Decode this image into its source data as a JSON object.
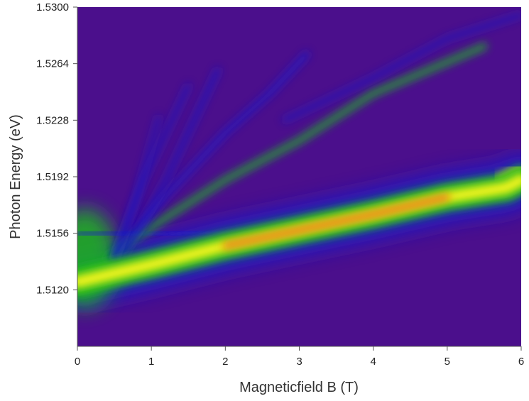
{
  "chart_data": {
    "type": "heatmap",
    "title": "",
    "xlabel": "Magneticfield B (T)",
    "ylabel": "Photon Energy (eV)",
    "xlim": [
      0,
      6
    ],
    "ylim": [
      1.5084,
      1.53
    ],
    "x_ticks": [
      "0",
      "1",
      "2",
      "3",
      "4",
      "5",
      "6"
    ],
    "y_ticks": [
      "1.5120",
      "1.5156",
      "1.5192",
      "1.5228",
      "1.5264",
      "1.5300"
    ],
    "colormap": "purple-blue-green-yellow-red (low to high intensity)",
    "colors": {
      "background": "#4b0f8c",
      "low": "#1a1acc",
      "mid": "#1fb81a",
      "high": "#f5f51a",
      "peak": "#e85a12"
    },
    "grid": false,
    "legend": "none",
    "features": [
      {
        "name": "main branch",
        "points": [
          [
            0,
            1.5125
          ],
          [
            1,
            1.5136
          ],
          [
            2,
            1.5148
          ],
          [
            3,
            1.5158
          ],
          [
            4,
            1.5168
          ],
          [
            5,
            1.5179
          ],
          [
            5.8,
            1.5185
          ],
          [
            6,
            1.519
          ]
        ],
        "level": 1.0
      },
      {
        "name": "upper split branch",
        "points": [
          [
            5.7,
            1.519
          ],
          [
            6,
            1.5197
          ]
        ],
        "level": 0.9
      },
      {
        "name": "weak line",
        "points": [
          [
            0,
            1.5155
          ],
          [
            0.6,
            1.5155
          ],
          [
            2.3,
            1.5157
          ]
        ],
        "level": 0.45
      },
      {
        "name": "band 1",
        "points": [
          [
            0.4,
            1.514
          ],
          [
            1,
            1.516
          ],
          [
            2,
            1.519
          ],
          [
            3,
            1.5215
          ],
          [
            4,
            1.5245
          ],
          [
            5,
            1.5265
          ],
          [
            5.5,
            1.5275
          ]
        ],
        "level": 0.55
      },
      {
        "name": "band 2",
        "points": [
          [
            0.5,
            1.514
          ],
          [
            1.2,
            1.518
          ],
          [
            2,
            1.522
          ],
          [
            2.6,
            1.5245
          ],
          [
            3.1,
            1.527
          ]
        ],
        "level": 0.45
      },
      {
        "name": "band 3",
        "points": [
          [
            0.6,
            1.514
          ],
          [
            1.2,
            1.519
          ],
          [
            1.9,
            1.526
          ]
        ],
        "level": 0.35
      },
      {
        "name": "band 4",
        "points": [
          [
            0.5,
            1.514
          ],
          [
            0.9,
            1.519
          ],
          [
            1.5,
            1.525
          ]
        ],
        "level": 0.3
      },
      {
        "name": "band 5",
        "points": [
          [
            0.5,
            1.514
          ],
          [
            0.8,
            1.518
          ],
          [
            1.1,
            1.523
          ]
        ],
        "level": 0.25
      },
      {
        "name": "band 6",
        "points": [
          [
            2.8,
            1.5228
          ],
          [
            4,
            1.5255
          ],
          [
            5,
            1.528
          ],
          [
            6,
            1.5295
          ]
        ],
        "level": 0.3
      }
    ]
  }
}
